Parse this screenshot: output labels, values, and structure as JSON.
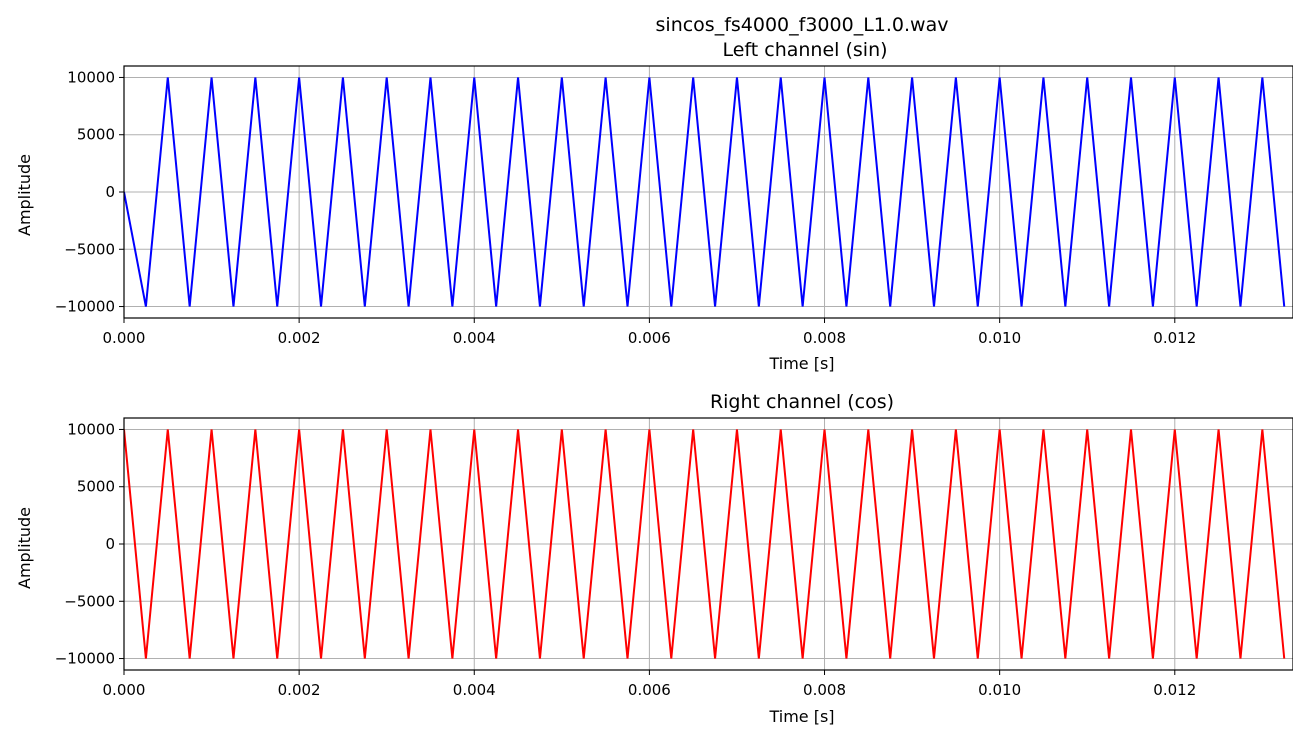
{
  "figure_title": "sincos_fs4000_f3000_L1.0.wav",
  "chart_data": [
    {
      "type": "line",
      "title": "Left channel (sin)",
      "xlabel": "Time [s]",
      "ylabel": "Amplitude",
      "xlim": [
        0,
        0.01335
      ],
      "ylim": [
        -11000,
        11000
      ],
      "x_ticks": [
        0,
        0.002,
        0.004,
        0.006,
        0.008,
        0.01,
        0.012
      ],
      "x_tick_labels": [
        "0.000",
        "0.002",
        "0.004",
        "0.006",
        "0.008",
        "0.010",
        "0.012"
      ],
      "y_ticks": [
        10000,
        5000,
        0,
        -5000,
        -10000
      ],
      "y_tick_labels": [
        "10000",
        "5000",
        "0",
        "−5000",
        "−10000"
      ],
      "grid": true,
      "sample_rate": 4000,
      "series": [
        {
          "color": "#0000ff",
          "values": [
            0,
            -10000,
            10000,
            -10000,
            10000,
            -10000,
            10000,
            -10000,
            10000,
            -10000,
            10000,
            -10000,
            10000,
            -10000,
            10000,
            -10000,
            10000,
            -10000,
            10000,
            -10000,
            10000,
            -10000,
            10000,
            -10000,
            10000,
            -10000,
            10000,
            -10000,
            10000,
            -10000,
            10000,
            -10000,
            10000,
            -10000,
            10000,
            -10000,
            10000,
            -10000,
            10000,
            -10000,
            10000,
            -10000,
            10000,
            -10000,
            10000,
            -10000,
            10000,
            -10000,
            10000,
            -10000,
            10000,
            -10000,
            10000,
            -10000
          ]
        }
      ]
    },
    {
      "type": "line",
      "title": "Right channel (cos)",
      "xlabel": "Time [s]",
      "ylabel": "Amplitude",
      "xlim": [
        0,
        0.01335
      ],
      "ylim": [
        -11000,
        11000
      ],
      "x_ticks": [
        0,
        0.002,
        0.004,
        0.006,
        0.008,
        0.01,
        0.012
      ],
      "x_tick_labels": [
        "0.000",
        "0.002",
        "0.004",
        "0.006",
        "0.008",
        "0.010",
        "0.012"
      ],
      "y_ticks": [
        10000,
        5000,
        0,
        -5000,
        -10000
      ],
      "y_tick_labels": [
        "10000",
        "5000",
        "0",
        "−5000",
        "−10000"
      ],
      "grid": true,
      "sample_rate": 4000,
      "series": [
        {
          "color": "#ff0000",
          "values": [
            10000,
            -10000,
            10000,
            -10000,
            10000,
            -10000,
            10000,
            -10000,
            10000,
            -10000,
            10000,
            -10000,
            10000,
            -10000,
            10000,
            -10000,
            10000,
            -10000,
            10000,
            -10000,
            10000,
            -10000,
            10000,
            -10000,
            10000,
            -10000,
            10000,
            -10000,
            10000,
            -10000,
            10000,
            -10000,
            10000,
            -10000,
            10000,
            -10000,
            10000,
            -10000,
            10000,
            -10000,
            10000,
            -10000,
            10000,
            -10000,
            10000,
            -10000,
            10000,
            -10000,
            10000,
            -10000,
            10000,
            -10000,
            10000,
            -10000
          ]
        }
      ]
    }
  ]
}
